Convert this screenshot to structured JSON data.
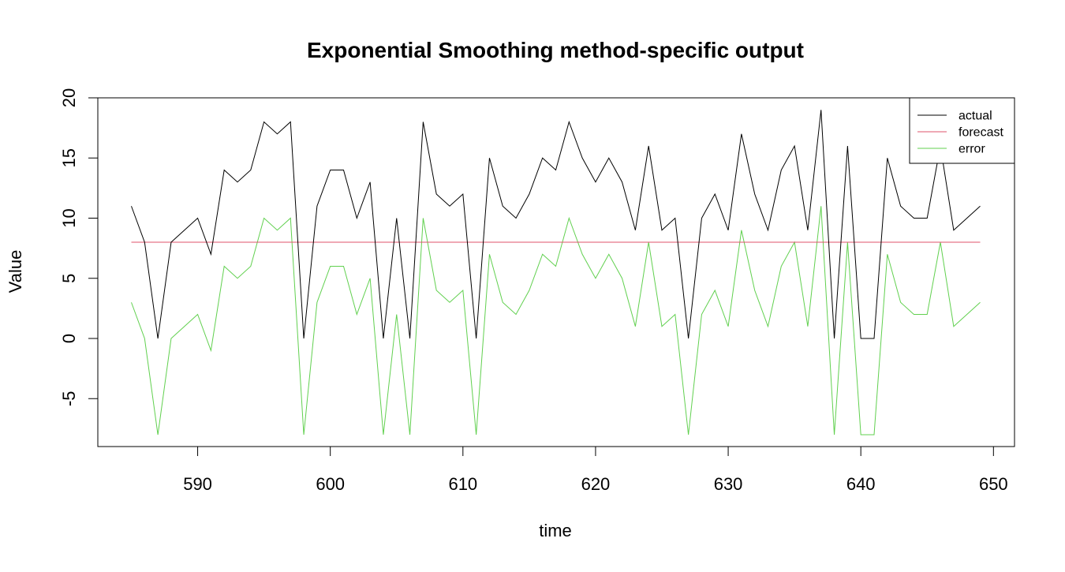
{
  "chart_data": {
    "type": "line",
    "title": "Exponential Smoothing method-specific output",
    "xlabel": "time",
    "ylabel": "Value",
    "xlim": [
      585,
      649
    ],
    "ylim": [
      -8,
      19
    ],
    "x_ticks": [
      590,
      600,
      610,
      620,
      630,
      640,
      650
    ],
    "y_ticks": [
      -5,
      0,
      5,
      10,
      15,
      20
    ],
    "legend_position": "top-right",
    "grid": false,
    "x": [
      585,
      586,
      587,
      588,
      589,
      590,
      591,
      592,
      593,
      594,
      595,
      596,
      597,
      598,
      599,
      600,
      601,
      602,
      603,
      604,
      605,
      606,
      607,
      608,
      609,
      610,
      611,
      612,
      613,
      614,
      615,
      616,
      617,
      618,
      619,
      620,
      621,
      622,
      623,
      624,
      625,
      626,
      627,
      628,
      629,
      630,
      631,
      632,
      633,
      634,
      635,
      636,
      637,
      638,
      639,
      640,
      641,
      642,
      643,
      644,
      645,
      646,
      647,
      648,
      649
    ],
    "series": [
      {
        "name": "actual",
        "color": "#000000",
        "values": [
          11,
          8,
          0,
          8,
          9,
          10,
          7,
          14,
          13,
          14,
          18,
          17,
          18,
          0,
          11,
          14,
          14,
          10,
          13,
          0,
          10,
          0,
          18,
          12,
          11,
          12,
          0,
          15,
          11,
          10,
          12,
          15,
          14,
          18,
          15,
          13,
          15,
          13,
          9,
          16,
          9,
          10,
          0,
          10,
          12,
          9,
          17,
          12,
          9,
          14,
          16,
          9,
          19,
          0,
          16,
          0,
          0,
          15,
          11,
          10,
          10,
          16,
          9,
          10,
          11
        ]
      },
      {
        "name": "forecast",
        "color": "#DF536B",
        "values": [
          8,
          8,
          8,
          8,
          8,
          8,
          8,
          8,
          8,
          8,
          8,
          8,
          8,
          8,
          8,
          8,
          8,
          8,
          8,
          8,
          8,
          8,
          8,
          8,
          8,
          8,
          8,
          8,
          8,
          8,
          8,
          8,
          8,
          8,
          8,
          8,
          8,
          8,
          8,
          8,
          8,
          8,
          8,
          8,
          8,
          8,
          8,
          8,
          8,
          8,
          8,
          8,
          8,
          8,
          8,
          8,
          8,
          8,
          8,
          8,
          8,
          8,
          8,
          8,
          8
        ]
      },
      {
        "name": "error",
        "color": "#61D04F",
        "values": [
          3,
          0,
          -8,
          0,
          1,
          2,
          -1,
          6,
          5,
          6,
          10,
          9,
          10,
          -8,
          3,
          6,
          6,
          2,
          5,
          -8,
          2,
          -8,
          10,
          4,
          3,
          4,
          -8,
          7,
          3,
          2,
          4,
          7,
          6,
          10,
          7,
          5,
          7,
          5,
          1,
          8,
          1,
          2,
          -8,
          2,
          4,
          1,
          9,
          4,
          1,
          6,
          8,
          1,
          11,
          -8,
          8,
          -8,
          -8,
          7,
          3,
          2,
          2,
          8,
          1,
          2,
          3
        ]
      }
    ]
  }
}
